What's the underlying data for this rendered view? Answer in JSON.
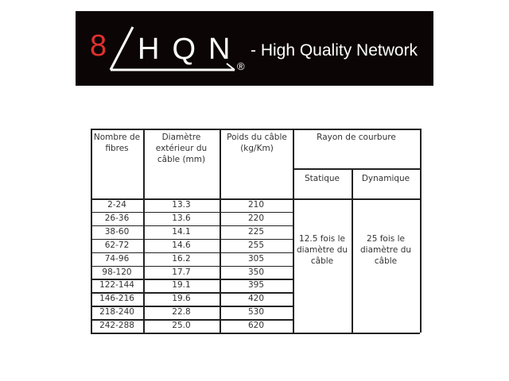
{
  "logo": {
    "number": "8",
    "letters": "HQN",
    "registered": "®",
    "tagline": "- High Quality Network",
    "accent_color": "#e0302d"
  },
  "table": {
    "headers": {
      "fibres": "Nombre de fibres",
      "diameter": "Diamètre extérieur du câble (mm)",
      "weight": "Poids du câble (kg/Km)",
      "bend_radius": "Rayon de courbure",
      "static": "Statique",
      "dynamic": "Dynamique"
    },
    "rows": [
      [
        "2-24",
        "13.3",
        "210"
      ],
      [
        "26-36",
        "13.6",
        "220"
      ],
      [
        "38-60",
        "14.1",
        "225"
      ],
      [
        "62-72",
        "14.6",
        "255"
      ],
      [
        "74-96",
        "16.2",
        "305"
      ],
      [
        "98-120",
        "17.7",
        "350"
      ],
      [
        "122-144",
        "19.1",
        "395"
      ],
      [
        "146-216",
        "19.6",
        "420"
      ],
      [
        "218-240",
        "22.8",
        "530"
      ],
      [
        "242-288",
        "25.0",
        "620"
      ]
    ],
    "static_value": "12.5 fois le diamètre du câble",
    "dynamic_value": "25 fois le diamètre du câble"
  }
}
